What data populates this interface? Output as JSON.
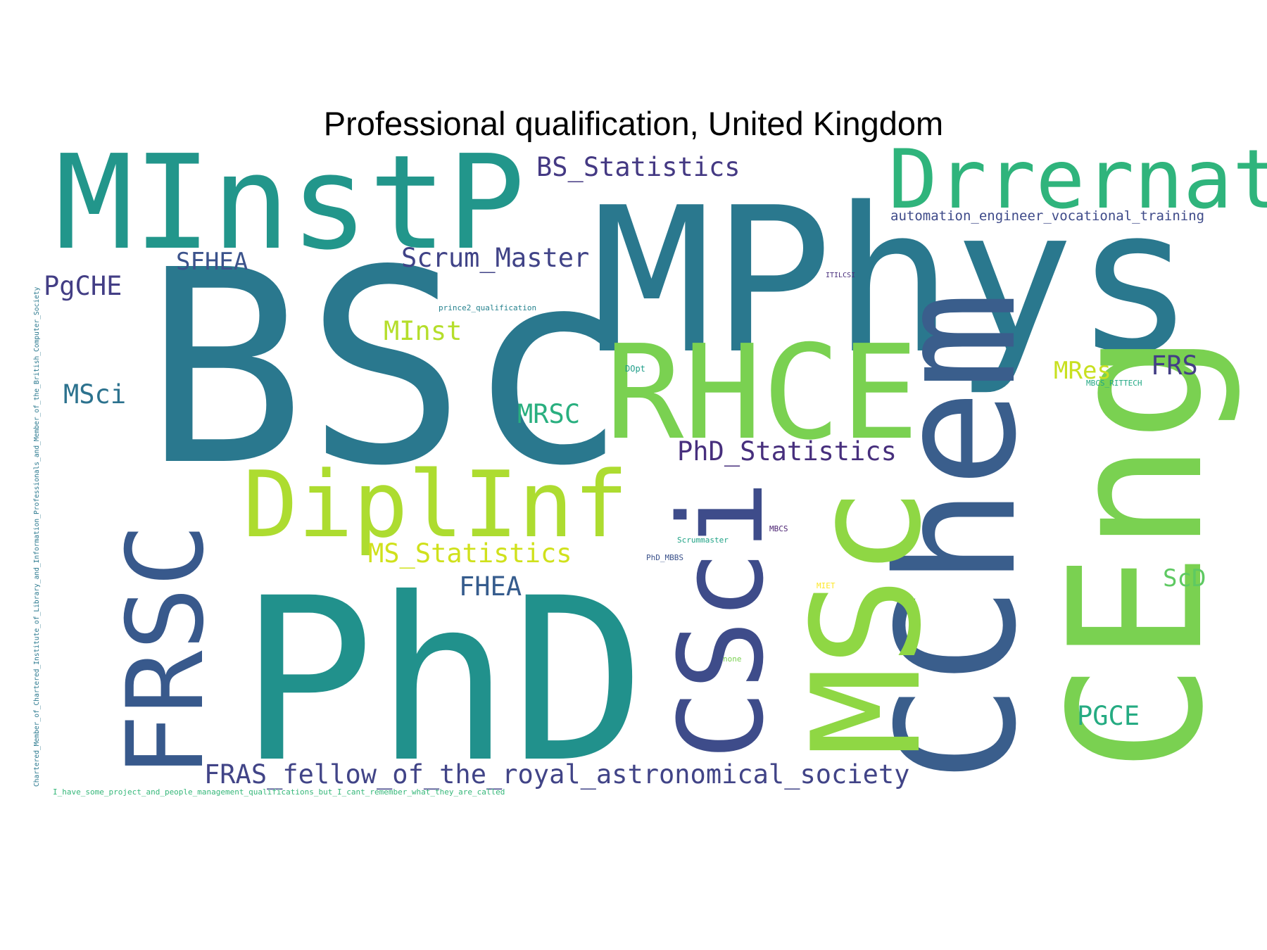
{
  "title": "Professional qualification, United Kingdom",
  "words": [
    {
      "text": "BSc",
      "color": "#2a788e"
    },
    {
      "text": "MPhys",
      "color": "#2a788e"
    },
    {
      "text": "PhD",
      "color": "#21918c"
    },
    {
      "text": "MInstP",
      "color": "#22968b"
    },
    {
      "text": "RHCE",
      "color": "#7ad151"
    },
    {
      "text": "Drrernat",
      "color": "#2fb47c"
    },
    {
      "text": "CEng",
      "color": "#7ad151"
    },
    {
      "text": "CChem",
      "color": "#3a5e8c"
    },
    {
      "text": "MSc",
      "color": "#8fd744"
    },
    {
      "text": "CSci",
      "color": "#3e4c8a"
    },
    {
      "text": "FRSC",
      "color": "#38598c"
    },
    {
      "text": "DiplInf",
      "color": "#addc30"
    },
    {
      "text": "BS_Statistics",
      "color": "#443983"
    },
    {
      "text": "automation_engineer_vocational_training",
      "color": "#3e4a89"
    },
    {
      "text": "SFHEA",
      "color": "#3b528b"
    },
    {
      "text": "Scrum_Master",
      "color": "#404387"
    },
    {
      "text": "PgCHE",
      "color": "#433e85"
    },
    {
      "text": "ITILCSI",
      "color": "#472d7b"
    },
    {
      "text": "prince2_qualification",
      "color": "#26828e"
    },
    {
      "text": "MInst",
      "color": "#b5de2b"
    },
    {
      "text": "MRes",
      "color": "#c8e020"
    },
    {
      "text": "FRS",
      "color": "#433e85"
    },
    {
      "text": "MSci",
      "color": "#2c728e"
    },
    {
      "text": "DOpt",
      "color": "#1f9e89"
    },
    {
      "text": "MBCS_RITTECH",
      "color": "#22a884"
    },
    {
      "text": "MRSC",
      "color": "#29af7f"
    },
    {
      "text": "PhD_Statistics",
      "color": "#472f7d"
    },
    {
      "text": "MS_Statistics",
      "color": "#d0e11c"
    },
    {
      "text": "Scrummaster",
      "color": "#20a386"
    },
    {
      "text": "MBCS",
      "color": "#481f70"
    },
    {
      "text": "PhD_MBBS",
      "color": "#3b528b"
    },
    {
      "text": "FHEA",
      "color": "#365c8d"
    },
    {
      "text": "MIET",
      "color": "#fde725"
    },
    {
      "text": "ScD",
      "color": "#5ec962"
    },
    {
      "text": "none",
      "color": "#7ad151"
    },
    {
      "text": "PGCE",
      "color": "#25ab82"
    },
    {
      "text": "FRAS_fellow_of_the_royal_astronomical_society",
      "color": "#414487"
    },
    {
      "text": "I_have_some_project_and_people_management_qualifications_but_I_cant_remember_what_they_are_called",
      "color": "#35b779"
    },
    {
      "text": "Chartered_Member_of_Chartered_Institute_of_Library_and_Information_Professionals_and_Member_of_the_British_Computer_Society",
      "color": "#2a788e"
    }
  ]
}
